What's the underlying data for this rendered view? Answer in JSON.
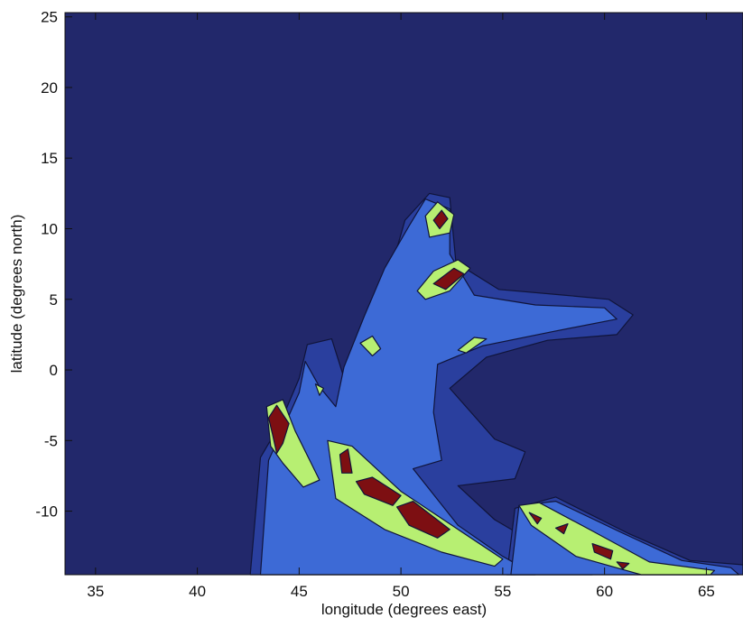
{
  "chart_data": {
    "type": "contour",
    "xlabel": "longitude (degrees east)",
    "ylabel": "latitude (degrees north)",
    "xlim": [
      33.5,
      66.8
    ],
    "ylim": [
      -14.5,
      25.3
    ],
    "xticks": [
      35,
      40,
      45,
      50,
      55,
      60,
      65
    ],
    "yticks": [
      -10,
      -5,
      0,
      5,
      10,
      15,
      20,
      25
    ],
    "grid": false,
    "legend": "none",
    "level_colors": [
      "#22286b",
      "#2a3f9e",
      "#3d6ad6",
      "#b7ef72",
      "#7d0f12"
    ],
    "regions": [
      {
        "level": 1,
        "points": [
          [
            42.6,
            -14.5
          ],
          [
            43.1,
            -6.2
          ],
          [
            44.0,
            -4.0
          ],
          [
            45.0,
            -0.6
          ],
          [
            45.4,
            1.8
          ],
          [
            46.6,
            2.2
          ],
          [
            47.3,
            -1.0
          ],
          [
            48.4,
            3.4
          ],
          [
            49.6,
            7.6
          ],
          [
            50.2,
            10.6
          ],
          [
            51.4,
            12.5
          ],
          [
            52.4,
            12.2
          ],
          [
            52.7,
            7.6
          ],
          [
            54.8,
            5.7
          ],
          [
            58.0,
            5.3
          ],
          [
            60.2,
            5.0
          ],
          [
            61.4,
            3.9
          ],
          [
            60.6,
            2.5
          ],
          [
            57.2,
            2.1
          ],
          [
            54.2,
            0.9
          ],
          [
            52.4,
            -1.3
          ],
          [
            54.6,
            -4.9
          ],
          [
            56.1,
            -5.8
          ],
          [
            55.6,
            -7.7
          ],
          [
            52.8,
            -8.2
          ],
          [
            54.6,
            -10.6
          ],
          [
            57.2,
            -12.8
          ],
          [
            59.4,
            -14.5
          ]
        ]
      },
      {
        "level": 1,
        "points": [
          [
            55.2,
            -14.5
          ],
          [
            55.6,
            -9.8
          ],
          [
            57.6,
            -9.0
          ],
          [
            61.2,
            -11.6
          ],
          [
            64.2,
            -13.5
          ],
          [
            66.8,
            -13.8
          ],
          [
            66.8,
            -14.5
          ]
        ]
      },
      {
        "level": 2,
        "points": [
          [
            43.1,
            -14.5
          ],
          [
            43.5,
            -6.4
          ],
          [
            44.2,
            -4.2
          ],
          [
            45.0,
            -1.6
          ],
          [
            45.3,
            0.6
          ],
          [
            46.0,
            -1.2
          ],
          [
            46.8,
            -2.6
          ],
          [
            47.2,
            0.2
          ],
          [
            48.2,
            3.8
          ],
          [
            49.2,
            7.2
          ],
          [
            50.4,
            10.2
          ],
          [
            51.2,
            12.1
          ],
          [
            52.4,
            11.4
          ],
          [
            52.4,
            8.2
          ],
          [
            53.6,
            5.3
          ],
          [
            56.6,
            4.6
          ],
          [
            60.0,
            4.4
          ],
          [
            60.6,
            3.6
          ],
          [
            57.4,
            2.7
          ],
          [
            54.0,
            1.7
          ],
          [
            51.8,
            0.4
          ],
          [
            51.6,
            -3.0
          ],
          [
            52.0,
            -6.4
          ],
          [
            50.6,
            -7.0
          ],
          [
            52.8,
            -11.0
          ],
          [
            55.0,
            -13.2
          ],
          [
            56.6,
            -14.5
          ]
        ]
      },
      {
        "level": 2,
        "points": [
          [
            55.4,
            -14.5
          ],
          [
            55.8,
            -9.6
          ],
          [
            57.6,
            -9.3
          ],
          [
            60.8,
            -11.5
          ],
          [
            63.8,
            -13.5
          ],
          [
            66.2,
            -14.0
          ],
          [
            66.6,
            -14.5
          ]
        ]
      },
      {
        "level": 3,
        "points": [
          [
            43.6,
            -5.4
          ],
          [
            43.4,
            -2.6
          ],
          [
            44.2,
            -2.1
          ],
          [
            44.8,
            -4.3
          ],
          [
            46.0,
            -7.8
          ],
          [
            45.2,
            -8.3
          ],
          [
            44.2,
            -6.6
          ]
        ]
      },
      {
        "level": 3,
        "points": [
          [
            46.4,
            -5.0
          ],
          [
            47.6,
            -5.4
          ],
          [
            50.0,
            -8.6
          ],
          [
            52.6,
            -11.1
          ],
          [
            55.0,
            -13.4
          ],
          [
            54.6,
            -13.9
          ],
          [
            52.0,
            -12.9
          ],
          [
            49.2,
            -11.3
          ],
          [
            46.8,
            -9.1
          ]
        ]
      },
      {
        "level": 3,
        "points": [
          [
            55.8,
            -9.6
          ],
          [
            56.8,
            -9.4
          ],
          [
            59.4,
            -11.4
          ],
          [
            62.2,
            -13.6
          ],
          [
            65.4,
            -14.2
          ],
          [
            65.2,
            -14.5
          ],
          [
            61.8,
            -14.5
          ],
          [
            58.6,
            -13.2
          ],
          [
            56.4,
            -11.0
          ]
        ]
      },
      {
        "level": 3,
        "points": [
          [
            51.4,
            9.4
          ],
          [
            52.4,
            9.7
          ],
          [
            52.6,
            11.0
          ],
          [
            51.8,
            11.9
          ],
          [
            51.2,
            10.9
          ]
        ]
      },
      {
        "level": 3,
        "points": [
          [
            50.8,
            5.6
          ],
          [
            51.6,
            7.0
          ],
          [
            52.8,
            7.8
          ],
          [
            53.4,
            7.2
          ],
          [
            52.4,
            5.6
          ],
          [
            51.2,
            5.0
          ]
        ]
      },
      {
        "level": 3,
        "points": [
          [
            48.0,
            1.9
          ],
          [
            48.6,
            2.4
          ],
          [
            49.0,
            1.5
          ],
          [
            48.6,
            1.0
          ]
        ]
      },
      {
        "level": 3,
        "points": [
          [
            53.6,
            2.3
          ],
          [
            54.2,
            2.2
          ],
          [
            53.2,
            1.2
          ],
          [
            52.8,
            1.4
          ]
        ]
      },
      {
        "level": 3,
        "points": [
          [
            45.8,
            -1.0
          ],
          [
            46.2,
            -1.3
          ],
          [
            46.0,
            -1.8
          ]
        ]
      },
      {
        "level": 4,
        "points": [
          [
            43.5,
            -3.4
          ],
          [
            43.9,
            -2.5
          ],
          [
            44.5,
            -3.8
          ],
          [
            44.2,
            -5.2
          ],
          [
            43.9,
            -5.9
          ],
          [
            43.7,
            -4.6
          ]
        ]
      },
      {
        "level": 4,
        "points": [
          [
            47.0,
            -6.0
          ],
          [
            47.4,
            -5.6
          ],
          [
            47.6,
            -7.3
          ],
          [
            47.1,
            -7.3
          ]
        ]
      },
      {
        "level": 4,
        "points": [
          [
            47.8,
            -7.9
          ],
          [
            48.6,
            -7.6
          ],
          [
            50.0,
            -8.9
          ],
          [
            49.6,
            -9.6
          ],
          [
            48.2,
            -8.8
          ]
        ]
      },
      {
        "level": 4,
        "points": [
          [
            49.8,
            -9.7
          ],
          [
            50.6,
            -9.3
          ],
          [
            52.4,
            -11.3
          ],
          [
            51.8,
            -11.9
          ],
          [
            50.4,
            -11.0
          ]
        ]
      },
      {
        "level": 4,
        "points": [
          [
            51.6,
            10.6
          ],
          [
            52.0,
            11.3
          ],
          [
            52.3,
            10.7
          ],
          [
            51.9,
            10.0
          ]
        ]
      },
      {
        "level": 4,
        "points": [
          [
            51.6,
            6.1
          ],
          [
            52.6,
            7.2
          ],
          [
            53.1,
            6.8
          ],
          [
            52.2,
            5.7
          ]
        ]
      },
      {
        "level": 4,
        "points": [
          [
            56.3,
            -10.1
          ],
          [
            56.9,
            -10.5
          ],
          [
            56.7,
            -10.9
          ]
        ]
      },
      {
        "level": 4,
        "points": [
          [
            57.6,
            -11.2
          ],
          [
            58.2,
            -10.9
          ],
          [
            58.0,
            -11.6
          ]
        ]
      },
      {
        "level": 4,
        "points": [
          [
            59.4,
            -12.3
          ],
          [
            60.4,
            -12.8
          ],
          [
            60.3,
            -13.4
          ],
          [
            59.5,
            -12.9
          ]
        ]
      },
      {
        "level": 4,
        "points": [
          [
            60.6,
            -13.6
          ],
          [
            61.2,
            -13.7
          ],
          [
            60.9,
            -14.1
          ]
        ]
      }
    ]
  }
}
